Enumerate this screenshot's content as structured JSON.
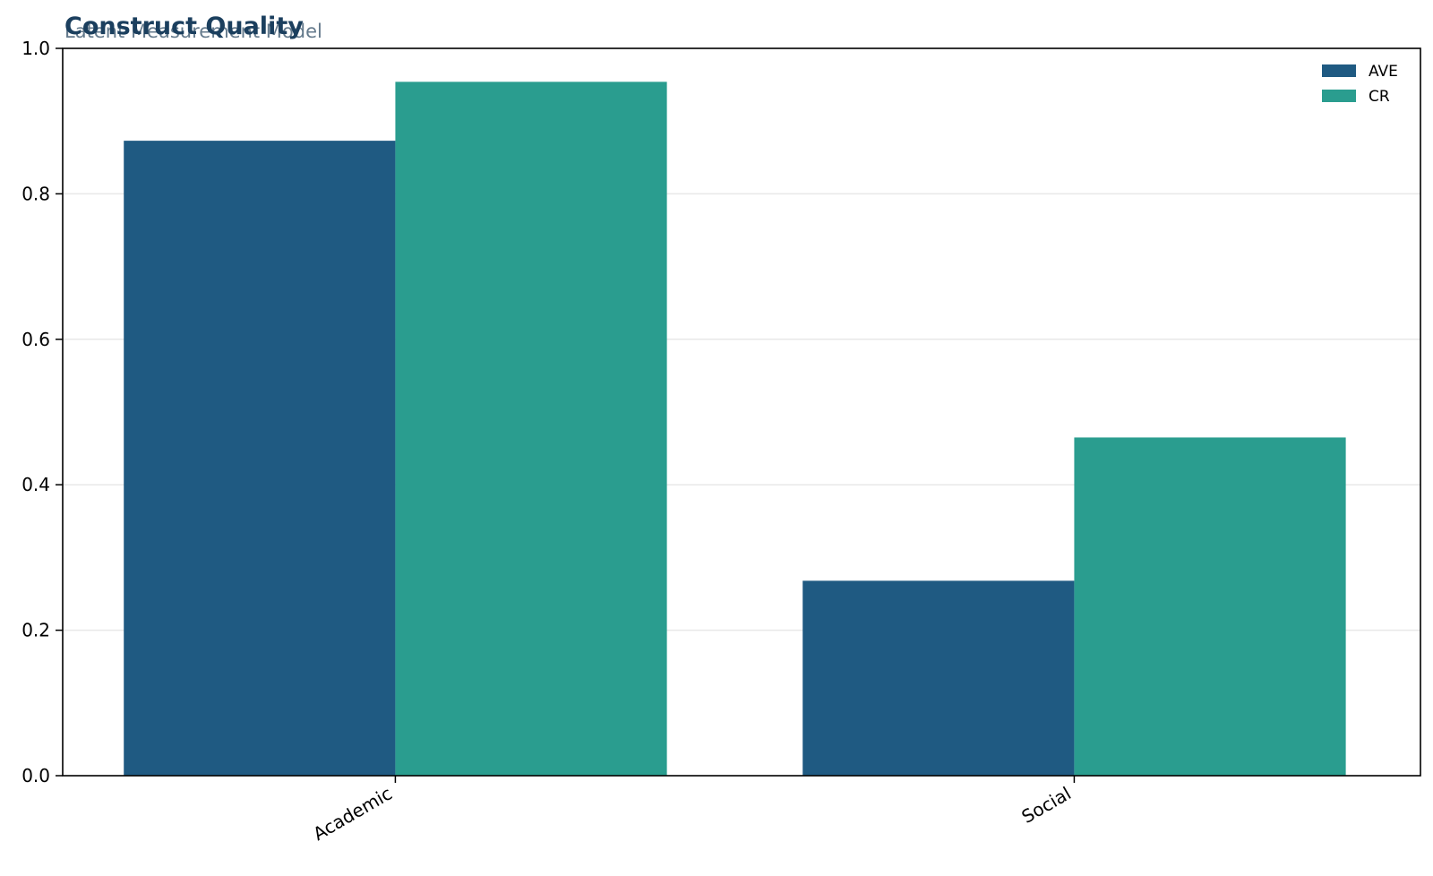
{
  "chart_data": {
    "type": "bar",
    "title": "Construct Quality",
    "subtitle": "Latent Measurement Model",
    "xlabel": "",
    "ylabel": "",
    "categories": [
      "Academic",
      "Social"
    ],
    "series": [
      {
        "name": "AVE",
        "values": [
          0.873,
          0.268
        ],
        "color": "#1f5a82"
      },
      {
        "name": "CR",
        "values": [
          0.954,
          0.465
        ],
        "color": "#2a9d8f"
      }
    ],
    "ylim": [
      0,
      1.0
    ],
    "yticks": [
      "0.0",
      "0.2",
      "0.4",
      "0.6",
      "0.8",
      "1.0"
    ],
    "grid": "horizontal",
    "legend": "top-right"
  }
}
